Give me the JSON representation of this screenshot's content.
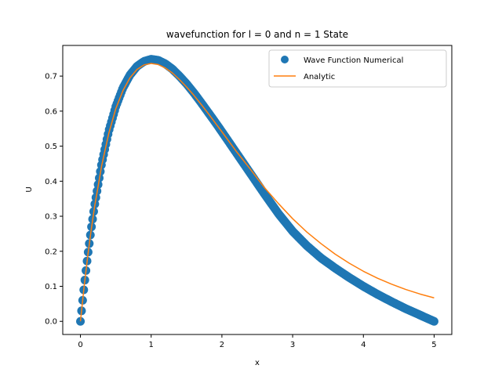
{
  "chart_data": {
    "type": "scatter",
    "title": "wavefunction for l = 0 and n = 1 State",
    "xlabel": "x",
    "ylabel": "U",
    "xlim": [
      -0.25,
      5.25
    ],
    "ylim": [
      -0.0375,
      0.7875
    ],
    "x_ticks": [
      0,
      1,
      2,
      3,
      4,
      5
    ],
    "x_tick_labels": [
      "0",
      "1",
      "2",
      "3",
      "4",
      "5"
    ],
    "y_ticks": [
      0.0,
      0.1,
      0.2,
      0.3,
      0.4,
      0.5,
      0.6,
      0.7
    ],
    "y_tick_labels": [
      "0.0",
      "0.1",
      "0.2",
      "0.3",
      "0.4",
      "0.5",
      "0.6",
      "0.7"
    ],
    "grid": false,
    "legend_position": "top-right",
    "series": [
      {
        "name": "Wave Function Numerical",
        "type": "scatter",
        "color": "#1f77b4",
        "x": [
          0.0,
          0.05,
          0.1,
          0.15,
          0.2,
          0.3,
          0.4,
          0.5,
          0.6,
          0.7,
          0.8,
          0.9,
          1.0,
          1.1,
          1.2,
          1.3,
          1.4,
          1.5,
          1.6,
          1.7,
          1.8,
          1.9,
          2.0,
          2.2,
          2.4,
          2.6,
          2.8,
          3.0,
          3.2,
          3.4,
          3.6,
          3.8,
          4.0,
          4.2,
          4.4,
          4.6,
          4.8,
          5.0
        ],
        "y": [
          0.0,
          0.096,
          0.183,
          0.261,
          0.331,
          0.45,
          0.543,
          0.613,
          0.666,
          0.703,
          0.728,
          0.742,
          0.748,
          0.745,
          0.735,
          0.72,
          0.7,
          0.678,
          0.653,
          0.626,
          0.598,
          0.57,
          0.541,
          0.482,
          0.423,
          0.364,
          0.307,
          0.257,
          0.216,
          0.181,
          0.152,
          0.125,
          0.1,
          0.077,
          0.056,
          0.036,
          0.018,
          0.0
        ]
      },
      {
        "name": "Analytic",
        "type": "line",
        "color": "#ff7f0e",
        "x": [
          0.0,
          0.05,
          0.1,
          0.15,
          0.2,
          0.3,
          0.4,
          0.5,
          0.6,
          0.7,
          0.8,
          0.9,
          1.0,
          1.1,
          1.2,
          1.3,
          1.4,
          1.5,
          1.6,
          1.7,
          1.8,
          1.9,
          2.0,
          2.2,
          2.4,
          2.6,
          2.8,
          3.0,
          3.2,
          3.4,
          3.6,
          3.8,
          4.0,
          4.2,
          4.4,
          4.6,
          4.8,
          5.0
        ],
        "y": [
          0.0,
          0.095,
          0.181,
          0.258,
          0.327,
          0.444,
          0.536,
          0.607,
          0.658,
          0.695,
          0.719,
          0.732,
          0.736,
          0.733,
          0.723,
          0.709,
          0.69,
          0.669,
          0.646,
          0.621,
          0.595,
          0.568,
          0.541,
          0.486,
          0.435,
          0.382,
          0.336,
          0.293,
          0.255,
          0.222,
          0.192,
          0.166,
          0.143,
          0.123,
          0.106,
          0.091,
          0.078,
          0.067
        ]
      }
    ]
  }
}
